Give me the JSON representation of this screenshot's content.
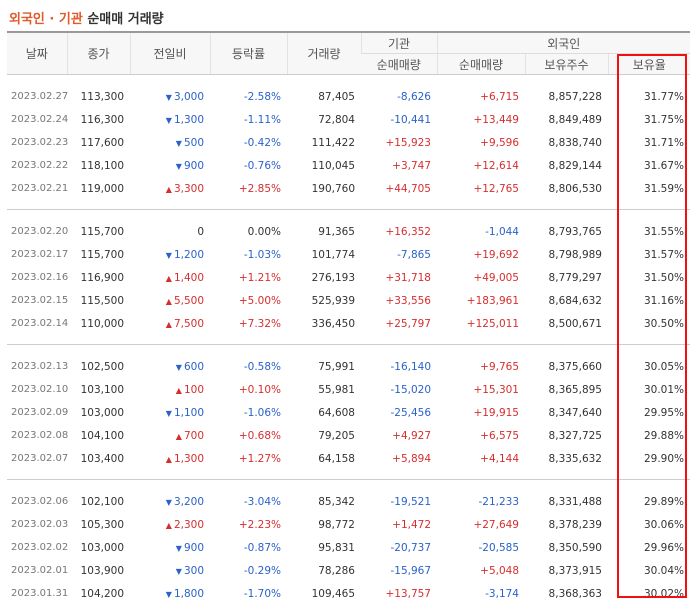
{
  "title": {
    "part1": "외국인 · 기관",
    "part2": "순매매 거래량"
  },
  "headers": {
    "date": "날짜",
    "close": "종가",
    "change": "전일비",
    "rate": "등락률",
    "volume": "거래량",
    "inst_group": "기관",
    "inst_net": "순매매량",
    "foreign_group": "외국인",
    "foreign_net": "순매매량",
    "foreign_shares": "보유주수",
    "foreign_ratio": "보유율"
  },
  "groups": [
    [
      {
        "date": "2023.02.27",
        "close": "113,300",
        "dir": "down",
        "change": "3,000",
        "rate": "-2.58%",
        "volume": "87,405",
        "inst": "-8,626",
        "foreign": "+6,715",
        "shares": "8,857,228",
        "ratio": "31.77%"
      },
      {
        "date": "2023.02.24",
        "close": "116,300",
        "dir": "down",
        "change": "1,300",
        "rate": "-1.11%",
        "volume": "72,804",
        "inst": "-10,441",
        "foreign": "+13,449",
        "shares": "8,849,489",
        "ratio": "31.75%"
      },
      {
        "date": "2023.02.23",
        "close": "117,600",
        "dir": "down",
        "change": "500",
        "rate": "-0.42%",
        "volume": "111,422",
        "inst": "+15,923",
        "foreign": "+9,596",
        "shares": "8,838,740",
        "ratio": "31.71%"
      },
      {
        "date": "2023.02.22",
        "close": "118,100",
        "dir": "down",
        "change": "900",
        "rate": "-0.76%",
        "volume": "110,045",
        "inst": "+3,747",
        "foreign": "+12,614",
        "shares": "8,829,144",
        "ratio": "31.67%"
      },
      {
        "date": "2023.02.21",
        "close": "119,000",
        "dir": "up",
        "change": "3,300",
        "rate": "+2.85%",
        "volume": "190,760",
        "inst": "+44,705",
        "foreign": "+12,765",
        "shares": "8,806,530",
        "ratio": "31.59%"
      }
    ],
    [
      {
        "date": "2023.02.20",
        "close": "115,700",
        "dir": "none",
        "change": "0",
        "rate": "0.00%",
        "volume": "91,365",
        "inst": "+16,352",
        "foreign": "-1,044",
        "shares": "8,793,765",
        "ratio": "31.55%"
      },
      {
        "date": "2023.02.17",
        "close": "115,700",
        "dir": "down",
        "change": "1,200",
        "rate": "-1.03%",
        "volume": "101,774",
        "inst": "-7,865",
        "foreign": "+19,692",
        "shares": "8,798,989",
        "ratio": "31.57%"
      },
      {
        "date": "2023.02.16",
        "close": "116,900",
        "dir": "up",
        "change": "1,400",
        "rate": "+1.21%",
        "volume": "276,193",
        "inst": "+31,718",
        "foreign": "+49,005",
        "shares": "8,779,297",
        "ratio": "31.50%"
      },
      {
        "date": "2023.02.15",
        "close": "115,500",
        "dir": "up",
        "change": "5,500",
        "rate": "+5.00%",
        "volume": "525,939",
        "inst": "+33,556",
        "foreign": "+183,961",
        "shares": "8,684,632",
        "ratio": "31.16%"
      },
      {
        "date": "2023.02.14",
        "close": "110,000",
        "dir": "up",
        "change": "7,500",
        "rate": "+7.32%",
        "volume": "336,450",
        "inst": "+25,797",
        "foreign": "+125,011",
        "shares": "8,500,671",
        "ratio": "30.50%"
      }
    ],
    [
      {
        "date": "2023.02.13",
        "close": "102,500",
        "dir": "down",
        "change": "600",
        "rate": "-0.58%",
        "volume": "75,991",
        "inst": "-16,140",
        "foreign": "+9,765",
        "shares": "8,375,660",
        "ratio": "30.05%"
      },
      {
        "date": "2023.02.10",
        "close": "103,100",
        "dir": "up",
        "change": "100",
        "rate": "+0.10%",
        "volume": "55,981",
        "inst": "-15,020",
        "foreign": "+15,301",
        "shares": "8,365,895",
        "ratio": "30.01%"
      },
      {
        "date": "2023.02.09",
        "close": "103,000",
        "dir": "down",
        "change": "1,100",
        "rate": "-1.06%",
        "volume": "64,608",
        "inst": "-25,456",
        "foreign": "+19,915",
        "shares": "8,347,640",
        "ratio": "29.95%"
      },
      {
        "date": "2023.02.08",
        "close": "104,100",
        "dir": "up",
        "change": "700",
        "rate": "+0.68%",
        "volume": "79,205",
        "inst": "+4,927",
        "foreign": "+6,575",
        "shares": "8,327,725",
        "ratio": "29.88%"
      },
      {
        "date": "2023.02.07",
        "close": "103,400",
        "dir": "up",
        "change": "1,300",
        "rate": "+1.27%",
        "volume": "64,158",
        "inst": "+5,894",
        "foreign": "+4,144",
        "shares": "8,335,632",
        "ratio": "29.90%"
      }
    ],
    [
      {
        "date": "2023.02.06",
        "close": "102,100",
        "dir": "down",
        "change": "3,200",
        "rate": "-3.04%",
        "volume": "85,342",
        "inst": "-19,521",
        "foreign": "-21,233",
        "shares": "8,331,488",
        "ratio": "29.89%"
      },
      {
        "date": "2023.02.03",
        "close": "105,300",
        "dir": "up",
        "change": "2,300",
        "rate": "+2.23%",
        "volume": "98,772",
        "inst": "+1,472",
        "foreign": "+27,649",
        "shares": "8,378,239",
        "ratio": "30.06%"
      },
      {
        "date": "2023.02.02",
        "close": "103,000",
        "dir": "down",
        "change": "900",
        "rate": "-0.87%",
        "volume": "95,831",
        "inst": "-20,737",
        "foreign": "-20,585",
        "shares": "8,350,590",
        "ratio": "29.96%"
      },
      {
        "date": "2023.02.01",
        "close": "103,900",
        "dir": "down",
        "change": "300",
        "rate": "-0.29%",
        "volume": "78,286",
        "inst": "-15,967",
        "foreign": "+5,048",
        "shares": "8,373,915",
        "ratio": "30.04%"
      },
      {
        "date": "2023.01.31",
        "close": "104,200",
        "dir": "down",
        "change": "1,800",
        "rate": "-1.70%",
        "volume": "109,465",
        "inst": "+13,757",
        "foreign": "-3,174",
        "shares": "8,368,363",
        "ratio": "30.02%"
      }
    ]
  ],
  "colors": {
    "up": "#d62e2e",
    "down": "#2a62c9",
    "highlight": "#f01010",
    "title_accent": "#e05a2b"
  },
  "icons": {
    "up": "triangle-up-icon",
    "down": "triangle-down-icon"
  }
}
